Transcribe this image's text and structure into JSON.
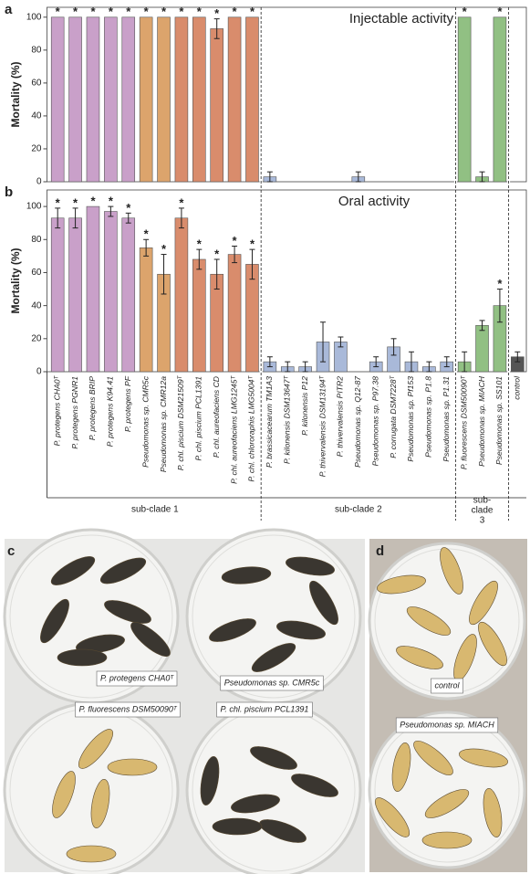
{
  "chart_data": [
    {
      "type": "bar",
      "panel_label": "a",
      "title": "Injectable activity",
      "y_label": "Mortality (%)",
      "ylim": [
        0,
        106
      ],
      "yticks": [
        0,
        20,
        40,
        60,
        80,
        100
      ],
      "values": [
        100,
        100,
        100,
        100,
        100,
        100,
        100,
        100,
        100,
        93,
        100,
        100,
        3,
        0,
        0,
        0,
        0,
        3,
        0,
        0,
        0,
        0,
        0,
        100,
        3,
        100,
        0
      ],
      "errors": [
        0,
        0,
        0,
        0,
        0,
        0,
        0,
        0,
        0,
        6,
        0,
        0,
        3,
        0,
        0,
        0,
        0,
        3,
        0,
        0,
        0,
        0,
        0,
        0,
        3,
        0,
        0
      ],
      "significance_label": "*",
      "significant": [
        true,
        true,
        true,
        true,
        true,
        true,
        true,
        true,
        true,
        true,
        true,
        true,
        false,
        false,
        false,
        false,
        false,
        false,
        false,
        false,
        false,
        false,
        false,
        true,
        false,
        true,
        false
      ]
    },
    {
      "type": "bar",
      "panel_label": "b",
      "title": "Oral activity",
      "y_label": "Mortality (%)",
      "ylim": [
        0,
        110
      ],
      "yticks": [
        0,
        20,
        40,
        60,
        80,
        100
      ],
      "categories": [
        "P. protegens CHA0ᵀ",
        "P. protegens PGNR1",
        "P. protegens BRIP",
        "P. protegens K94.41",
        "P. protegens PF",
        "Pseudomonas sp. CMR5c",
        "Pseudomonas sp. CMR12a",
        "P. chl. piscium DSM21509ᵀ",
        "P. chl. piscium PCL1391",
        "P. chl. aureofaciens CD",
        "P. chl. aureofaciens LMG1245ᵀ",
        "P. chl. chlororaphis LMG5004ᵀ",
        "P. brassicacearum TM1A3",
        "P. kilonensis DSM13647ᵀ",
        "P. kilonensis P12",
        "P. thivervalensis DSM13194ᵀ",
        "P. thivervalensis PITR2",
        "Pseudomonas sp. Q12-87",
        "Pseudomonas sp. P97.38",
        "P. corrugata DSM7228ᵀ",
        "Pseudomonas sp. Pf153",
        "Pseudomonas sp. P1.8",
        "Pseudomonas sp. P1.31",
        "P. fluorescens DSM50090ᵀ",
        "Pseudomonas sp. MIACH",
        "Pseudomonas sp. SS101",
        "control"
      ],
      "values": [
        93,
        93,
        100,
        97,
        93,
        75,
        59,
        93,
        68,
        59,
        71,
        65,
        6,
        3,
        3,
        18,
        18,
        0,
        6,
        15,
        6,
        3,
        6,
        6,
        28,
        40,
        9
      ],
      "errors": [
        6,
        6,
        0,
        3,
        3,
        5,
        12,
        6,
        6,
        9,
        5,
        9,
        3,
        3,
        3,
        12,
        3,
        0,
        3,
        5,
        6,
        3,
        3,
        6,
        3,
        10,
        3
      ],
      "significance_label": "*",
      "significant": [
        true,
        true,
        true,
        true,
        true,
        true,
        true,
        true,
        true,
        true,
        true,
        true,
        false,
        false,
        false,
        false,
        false,
        false,
        false,
        false,
        false,
        false,
        false,
        false,
        false,
        true,
        false
      ],
      "groups": [
        {
          "label": [
            "sub-clade 1"
          ],
          "count": 12
        },
        {
          "label": [
            "sub-clade 2"
          ],
          "count": 11
        },
        {
          "label": [
            "sub-",
            "clade",
            "3"
          ],
          "count": 3
        }
      ],
      "colors": [
        "#c9a0c9",
        "#c9a0c9",
        "#c9a0c9",
        "#c9a0c9",
        "#c9a0c9",
        "#dca46c",
        "#dca46c",
        "#d98c6c",
        "#d98c6c",
        "#d98c6c",
        "#d98c6c",
        "#d98c6c",
        "#a9b9d9",
        "#a9b9d9",
        "#a9b9d9",
        "#a9b9d9",
        "#a9b9d9",
        "#a9b9d9",
        "#a9b9d9",
        "#a9b9d9",
        "#a9b9d9",
        "#a9b9d9",
        "#a9b9d9",
        "#91c083",
        "#91c083",
        "#91c083",
        "#555555"
      ]
    }
  ],
  "photo_panels": [
    {
      "letter": "c",
      "labels": [
        "P. protegens CHA0ᵀ",
        "Pseudomonas sp. CMR5c",
        "P. fluorescens DSM50090ᵀ",
        "P. chl. piscium PCL1391"
      ]
    },
    {
      "letter": "d",
      "labels": [
        "control",
        "Pseudomonas sp. MIACH"
      ]
    }
  ]
}
